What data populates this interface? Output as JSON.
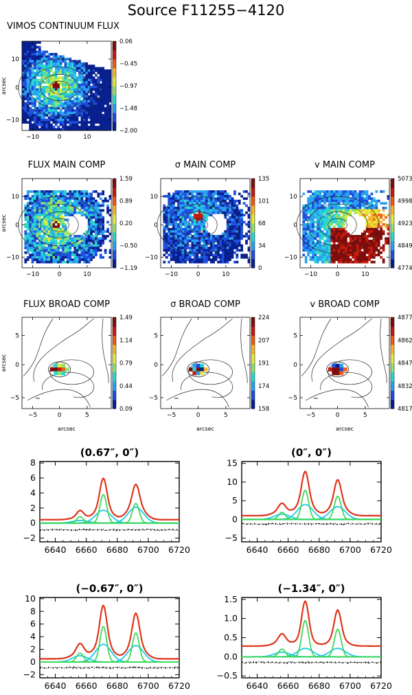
{
  "figure": {
    "title": "Source F11255−4120"
  },
  "colormap": [
    "#08208f",
    "#1f4fe0",
    "#2aa2ef",
    "#29d7d0",
    "#8fe36b",
    "#e4ec3a",
    "#f5b52a",
    "#ef5a18",
    "#c51a0f",
    "#7e0d0b"
  ],
  "maps": [
    {
      "key": "cont",
      "title": "VIMOS CONTINUUM FLUX",
      "x_ticks": [
        "−10",
        "0",
        "10"
      ],
      "y_ticks": [
        "10",
        "0",
        "−10"
      ],
      "y_label": "arcsec",
      "x_label": "",
      "colorbar": [
        "0.06",
        "−0.45",
        "−0.97",
        "−1.48",
        "−2.00"
      ]
    },
    {
      "key": "flux_main",
      "title": "FLUX MAIN COMP",
      "x_ticks": [
        "−10",
        "0",
        "10"
      ],
      "y_ticks": [
        "10",
        "0",
        "−10"
      ],
      "y_label": "arcsec",
      "x_label": "",
      "colorbar": [
        "1.59",
        "0.89",
        "0.20",
        "−0.50",
        "−1.19"
      ]
    },
    {
      "key": "sigma_main",
      "title": "σ  MAIN COMP",
      "x_ticks": [
        "−10",
        "0",
        "10"
      ],
      "y_ticks": [
        "10",
        "0",
        "−10"
      ],
      "y_label": "",
      "x_label": "",
      "colorbar": [
        "135",
        "101",
        "68",
        "34",
        "0"
      ]
    },
    {
      "key": "v_main",
      "title": "v MAIN COMP",
      "x_ticks": [
        "−10",
        "0",
        "10"
      ],
      "y_ticks": [
        "10",
        "0",
        "−10"
      ],
      "y_label": "",
      "x_label": "",
      "colorbar": [
        "5073",
        "4998",
        "4923",
        "4849",
        "4774"
      ]
    },
    {
      "key": "flux_broad",
      "title": "FLUX BROAD COMP",
      "x_ticks": [
        "−5",
        "0",
        "5"
      ],
      "y_ticks": [
        "5",
        "0",
        "−5"
      ],
      "y_label": "arcsec",
      "x_label": "arcsec",
      "colorbar": [
        "1.49",
        "1.14",
        "0.79",
        "0.44",
        "0.09"
      ]
    },
    {
      "key": "sigma_broad",
      "title": "σ BROAD COMP",
      "x_ticks": [
        "−5",
        "0",
        "5"
      ],
      "y_ticks": [
        "5",
        "0",
        "−5"
      ],
      "y_label": "",
      "x_label": "arcsec",
      "colorbar": [
        "224",
        "207",
        "191",
        "174",
        "158"
      ]
    },
    {
      "key": "v_broad",
      "title": "v BROAD COMP",
      "x_ticks": [
        "−5",
        "0",
        "5"
      ],
      "y_ticks": [
        "5",
        "0",
        "−5"
      ],
      "y_label": "",
      "x_label": "arcsec",
      "colorbar": [
        "4877",
        "4862",
        "4847",
        "4832",
        "4817"
      ]
    }
  ],
  "chart_data": [
    {
      "type": "line",
      "title": "(0.67″, 0″)",
      "x_range": [
        6630,
        6720
      ],
      "x_ticks": [
        6640,
        6660,
        6680,
        6700,
        6720
      ],
      "ylim": [
        -2.5,
        8.2
      ],
      "y_ticks": [
        8,
        6,
        4,
        2,
        0,
        -2
      ],
      "continuum": 0.45,
      "residual_level": -0.9,
      "lines": [
        {
          "center": 6656,
          "narrow": 0.85,
          "broad": 0.35
        },
        {
          "center": 6671,
          "narrow": 3.8,
          "broad": 1.7
        },
        {
          "center": 6692,
          "narrow": 2.6,
          "broad": 2.1
        }
      ]
    },
    {
      "type": "line",
      "title": "(0″, 0″)",
      "x_range": [
        6630,
        6720
      ],
      "x_ticks": [
        6640,
        6660,
        6680,
        6700,
        6720
      ],
      "ylim": [
        -6,
        15.5
      ],
      "y_ticks": [
        15,
        10,
        5,
        0,
        -5
      ],
      "continuum": 1.0,
      "residual_level": -1.2,
      "lines": [
        {
          "center": 6656,
          "narrow": 1.9,
          "broad": 1.4
        },
        {
          "center": 6671,
          "narrow": 7.8,
          "broad": 4.0
        },
        {
          "center": 6692,
          "narrow": 6.2,
          "broad": 3.4
        }
      ]
    },
    {
      "type": "line",
      "title": "(−0.67″, 0″)",
      "x_range": [
        6630,
        6720
      ],
      "x_ticks": [
        6640,
        6660,
        6680,
        6700,
        6720
      ],
      "ylim": [
        -2.5,
        10.2
      ],
      "y_ticks": [
        10,
        8,
        6,
        4,
        2,
        0,
        -2
      ],
      "continuum": 0.5,
      "residual_level": -0.9,
      "lines": [
        {
          "center": 6656,
          "narrow": 1.4,
          "broad": 1.0
        },
        {
          "center": 6671,
          "narrow": 5.6,
          "broad": 2.8
        },
        {
          "center": 6692,
          "narrow": 4.6,
          "broad": 2.6
        }
      ]
    },
    {
      "type": "line",
      "title": "(−1.34″, 0″)",
      "x_range": [
        6630,
        6720
      ],
      "x_ticks": [
        6640,
        6660,
        6680,
        6700,
        6720
      ],
      "ylim": [
        -0.55,
        1.55
      ],
      "y_ticks": [
        1.5,
        1.0,
        0.5,
        0.0,
        -0.5
      ],
      "continuum": 0.28,
      "residual_level": -0.15,
      "lines": [
        {
          "center": 6656,
          "narrow": 0.2,
          "broad": 0.12
        },
        {
          "center": 6671,
          "narrow": 0.95,
          "broad": 0.22
        },
        {
          "center": 6692,
          "narrow": 0.72,
          "broad": 0.22
        }
      ]
    }
  ]
}
